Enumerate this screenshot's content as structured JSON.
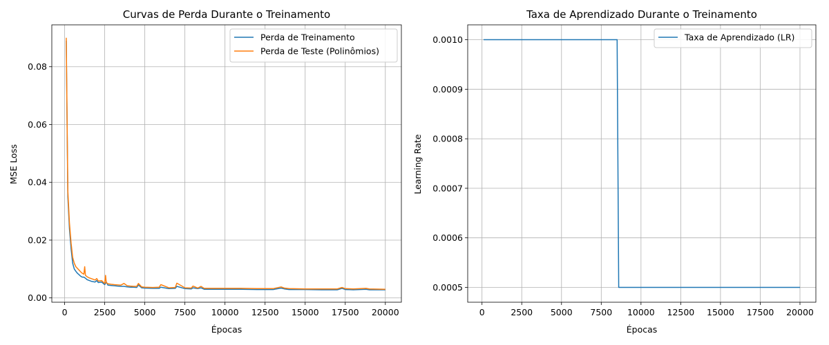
{
  "colors": {
    "train": "#1f77b4",
    "test": "#ff7f0e",
    "grid": "#b0b0b0",
    "axis": "#000000"
  },
  "chart_data": [
    {
      "type": "line",
      "title": "Curvas de Perda Durante o Treinamento",
      "xlabel": "Épocas",
      "ylabel": "MSE Loss",
      "xlim": [
        -800,
        21000
      ],
      "ylim": [
        -0.0015,
        0.0945
      ],
      "xticks": [
        0,
        2500,
        5000,
        7500,
        10000,
        12500,
        15000,
        17500,
        20000
      ],
      "xtick_labels": [
        "0",
        "2500",
        "5000",
        "7500",
        "10000",
        "12500",
        "15000",
        "17500",
        "20000"
      ],
      "yticks": [
        0.0,
        0.02,
        0.04,
        0.06,
        0.08
      ],
      "ytick_labels": [
        "0.00",
        "0.02",
        "0.04",
        "0.06",
        "0.08"
      ],
      "grid": true,
      "legend_position": "top-right",
      "series": [
        {
          "name": "Perda de Treinamento",
          "color_key": "train",
          "x": [
            100,
            200,
            300,
            400,
            500,
            600,
            700,
            800,
            900,
            1000,
            1100,
            1200,
            1300,
            1400,
            1500,
            1700,
            1900,
            2000,
            2100,
            2300,
            2500,
            2600,
            2700,
            2900,
            3100,
            3300,
            3500,
            3700,
            3900,
            4100,
            4300,
            4500,
            4600,
            4800,
            5000,
            5500,
            5900,
            6000,
            6500,
            6900,
            7000,
            7500,
            7900,
            8000,
            8300,
            8500,
            8700,
            9000,
            10000,
            11000,
            12000,
            13000,
            13500,
            13700,
            14000,
            15000,
            16000,
            17000,
            17300,
            17500,
            18000,
            18800,
            19000,
            20000
          ],
          "y": [
            0.089,
            0.035,
            0.024,
            0.017,
            0.012,
            0.01,
            0.0092,
            0.0085,
            0.008,
            0.0075,
            0.0072,
            0.0072,
            0.0068,
            0.0063,
            0.0061,
            0.0057,
            0.0055,
            0.006,
            0.0053,
            0.0055,
            0.0046,
            0.0055,
            0.0044,
            0.0043,
            0.0042,
            0.0041,
            0.004,
            0.004,
            0.0038,
            0.0037,
            0.0037,
            0.0036,
            0.0045,
            0.0035,
            0.0034,
            0.0033,
            0.0033,
            0.0037,
            0.0032,
            0.0033,
            0.004,
            0.0032,
            0.0031,
            0.0035,
            0.0032,
            0.0035,
            0.003,
            0.003,
            0.003,
            0.003,
            0.0029,
            0.0029,
            0.0034,
            0.0031,
            0.0029,
            0.0029,
            0.0028,
            0.0028,
            0.0033,
            0.0029,
            0.0028,
            0.003,
            0.0028,
            0.0028
          ]
        },
        {
          "name": "Perda de Teste (Polinômios)",
          "color_key": "test",
          "x": [
            100,
            200,
            300,
            400,
            500,
            600,
            700,
            800,
            900,
            1000,
            1100,
            1200,
            1250,
            1300,
            1400,
            1500,
            1700,
            1900,
            2000,
            2100,
            2300,
            2500,
            2550,
            2600,
            2700,
            2900,
            3100,
            3300,
            3500,
            3700,
            3900,
            4100,
            4300,
            4500,
            4600,
            4800,
            5000,
            5500,
            5900,
            6000,
            6500,
            6900,
            7000,
            7500,
            7900,
            8000,
            8300,
            8500,
            8700,
            9000,
            10000,
            11000,
            12000,
            13000,
            13500,
            13700,
            14000,
            15000,
            16000,
            17000,
            17300,
            17500,
            18000,
            18800,
            19000,
            20000
          ],
          "y": [
            0.09,
            0.037,
            0.026,
            0.019,
            0.014,
            0.012,
            0.0108,
            0.0102,
            0.0096,
            0.009,
            0.0085,
            0.0082,
            0.0108,
            0.0078,
            0.0073,
            0.007,
            0.0066,
            0.0062,
            0.0067,
            0.0058,
            0.006,
            0.005,
            0.0078,
            0.0052,
            0.0049,
            0.0047,
            0.0046,
            0.0045,
            0.0044,
            0.005,
            0.0042,
            0.0041,
            0.004,
            0.004,
            0.005,
            0.0038,
            0.0037,
            0.0036,
            0.0037,
            0.0046,
            0.0035,
            0.0036,
            0.0051,
            0.0035,
            0.0034,
            0.0041,
            0.0034,
            0.004,
            0.0033,
            0.0033,
            0.0033,
            0.0033,
            0.0032,
            0.0032,
            0.0038,
            0.0034,
            0.0032,
            0.0031,
            0.0031,
            0.0031,
            0.0036,
            0.0032,
            0.0031,
            0.0033,
            0.0031,
            0.003
          ]
        }
      ]
    },
    {
      "type": "line",
      "title": "Taxa de Aprendizado Durante o Treinamento",
      "xlabel": "Épocas",
      "ylabel": "Learning Rate",
      "xlim": [
        -900,
        21000
      ],
      "ylim": [
        0.00047,
        0.00103
      ],
      "xticks": [
        0,
        2500,
        5000,
        7500,
        10000,
        12500,
        15000,
        17500,
        20000
      ],
      "xtick_labels": [
        "0",
        "2500",
        "5000",
        "7500",
        "10000",
        "12500",
        "15000",
        "17500",
        "20000"
      ],
      "yticks": [
        0.0005,
        0.0006,
        0.0007,
        0.0008,
        0.0009,
        0.001
      ],
      "ytick_labels": [
        "0.0005",
        "0.0006",
        "0.0007",
        "0.0008",
        "0.0009",
        "0.0010"
      ],
      "grid": true,
      "legend_position": "top-right",
      "series": [
        {
          "name": "Taxa de Aprendizado (LR)",
          "color_key": "train",
          "x": [
            100,
            8500,
            8600,
            20000
          ],
          "y": [
            0.001,
            0.001,
            0.0005,
            0.0005
          ]
        }
      ]
    }
  ]
}
